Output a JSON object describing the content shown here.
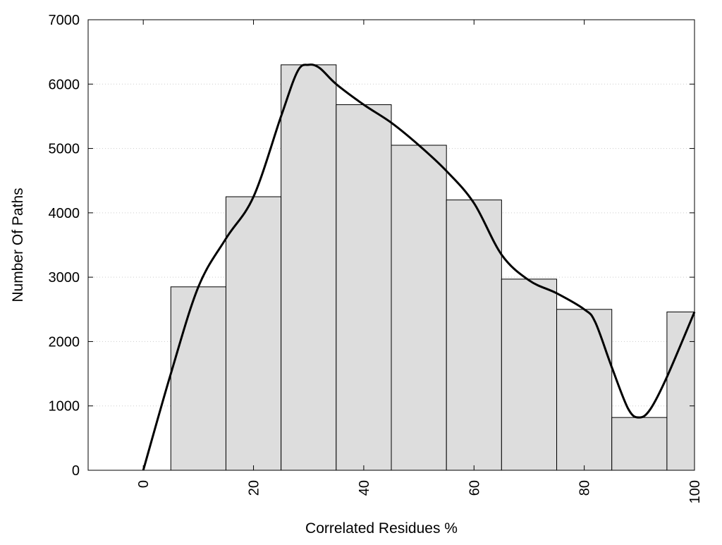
{
  "chart_data": {
    "type": "bar",
    "title": "",
    "xlabel": "Correlated Residues %",
    "ylabel": "Number Of Paths",
    "xlim": [
      -10,
      100
    ],
    "ylim": [
      0,
      7000
    ],
    "x_ticks": [
      0,
      20,
      40,
      60,
      80,
      100
    ],
    "y_ticks": [
      0,
      1000,
      2000,
      3000,
      4000,
      5000,
      6000,
      7000
    ],
    "grid": "horizontal dotted",
    "bin_width": 10,
    "categories": [
      "10",
      "20",
      "30",
      "40",
      "50",
      "60",
      "70",
      "80",
      "90",
      "100"
    ],
    "values": [
      2850,
      4250,
      6300,
      5680,
      5050,
      4200,
      2970,
      2500,
      820,
      2460
    ],
    "density_curve": {
      "x": [
        0,
        5,
        10,
        15,
        20,
        25,
        28,
        30,
        32,
        35,
        40,
        45,
        50,
        55,
        60,
        65,
        70,
        75,
        80,
        82,
        85,
        88,
        90,
        92,
        95,
        100
      ],
      "y": [
        0,
        1500,
        2850,
        3600,
        4250,
        5500,
        6200,
        6300,
        6250,
        6000,
        5680,
        5400,
        5050,
        4650,
        4150,
        3350,
        2950,
        2750,
        2500,
        2300,
        1600,
        950,
        820,
        950,
        1450,
        2460
      ]
    },
    "colors": {
      "bar_fill": "#dddddd",
      "bar_stroke": "#000000",
      "curve": "#000000",
      "grid": "#cccccc"
    }
  }
}
